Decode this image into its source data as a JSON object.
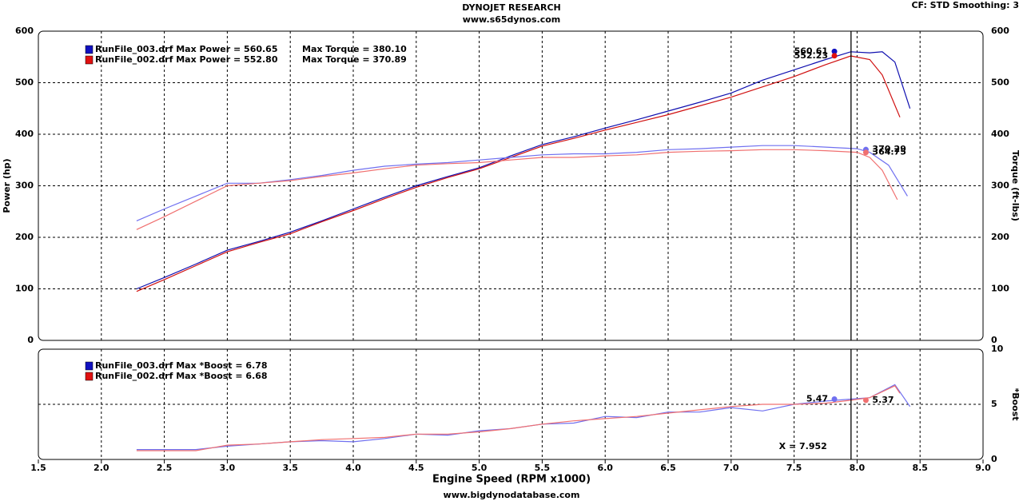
{
  "header": {
    "title": "DYNOJET RESEARCH",
    "subtitle": "www.s65dynos.com",
    "settings": "CF: STD  Smoothing: 3",
    "footer": "www.bigdynodatabase.com"
  },
  "chart_data": [
    {
      "type": "line",
      "ylabel": "Power (hp)",
      "y2label": "Torque (ft-lbs)",
      "xlim": [
        1.5,
        9.0
      ],
      "xticks": [
        1.5,
        2,
        2.5,
        3,
        3.5,
        4,
        4.5,
        5,
        5.5,
        6,
        6.5,
        7,
        7.5,
        8,
        8.5,
        9
      ],
      "ylim": [
        0,
        600
      ],
      "yticks": [
        0,
        100,
        200,
        300,
        400,
        500,
        600
      ],
      "y2lim": [
        0,
        600
      ],
      "y2ticks": [
        0,
        100,
        200,
        300,
        400,
        500,
        600
      ],
      "grid": true,
      "legend": [
        {
          "color": "#1010c0",
          "text": "RunFile_003.drf Max Power = 560.65",
          "text2": "Max Torque = 380.10"
        },
        {
          "color": "#e01010",
          "text": "RunFile_002.drf Max Power = 552.80",
          "text2": "Max Torque = 370.89"
        }
      ],
      "series": [
        {
          "color": "#1010b0",
          "axis": "y",
          "x": [
            2.28,
            2.5,
            2.75,
            3.0,
            3.25,
            3.5,
            3.75,
            4.0,
            4.25,
            4.5,
            4.75,
            5.0,
            5.25,
            5.5,
            5.75,
            6.0,
            6.25,
            6.5,
            6.75,
            7.0,
            7.25,
            7.5,
            7.75,
            7.95,
            8.1,
            8.2,
            8.3,
            8.42
          ],
          "values": [
            100,
            122,
            148,
            175,
            192,
            210,
            232,
            255,
            278,
            300,
            318,
            335,
            358,
            380,
            395,
            412,
            428,
            445,
            462,
            480,
            505,
            525,
            545,
            560,
            558,
            560,
            540,
            450
          ]
        },
        {
          "color": "#d01010",
          "axis": "y",
          "x": [
            2.28,
            2.5,
            2.75,
            3.0,
            3.25,
            3.5,
            3.75,
            4.0,
            4.25,
            4.5,
            4.75,
            5.0,
            5.25,
            5.5,
            5.75,
            6.0,
            6.25,
            6.5,
            6.75,
            7.0,
            7.25,
            7.5,
            7.75,
            7.95,
            8.1,
            8.2,
            8.34
          ],
          "values": [
            95,
            118,
            145,
            172,
            190,
            207,
            230,
            252,
            275,
            297,
            316,
            333,
            355,
            377,
            392,
            408,
            423,
            438,
            455,
            472,
            492,
            512,
            535,
            552,
            545,
            515,
            433
          ]
        },
        {
          "color": "#7070f0",
          "axis": "y2",
          "x": [
            2.28,
            2.5,
            2.75,
            3.0,
            3.25,
            3.5,
            3.75,
            4.0,
            4.25,
            4.5,
            4.75,
            5.0,
            5.25,
            5.5,
            5.75,
            6.0,
            6.25,
            6.5,
            6.75,
            7.0,
            7.25,
            7.5,
            7.75,
            8.0,
            8.1,
            8.25,
            8.4
          ],
          "values": [
            232,
            255,
            280,
            305,
            305,
            312,
            320,
            330,
            338,
            342,
            345,
            350,
            355,
            360,
            362,
            362,
            365,
            370,
            372,
            375,
            378,
            378,
            375,
            372,
            365,
            340,
            280
          ]
        },
        {
          "color": "#f07070",
          "axis": "y2",
          "x": [
            2.28,
            2.5,
            2.75,
            3.0,
            3.25,
            3.5,
            3.75,
            4.0,
            4.25,
            4.5,
            4.75,
            5.0,
            5.25,
            5.5,
            5.75,
            6.0,
            6.25,
            6.5,
            6.75,
            7.0,
            7.25,
            7.5,
            7.75,
            8.0,
            8.1,
            8.2,
            8.32
          ],
          "values": [
            215,
            240,
            270,
            300,
            305,
            310,
            318,
            325,
            333,
            340,
            343,
            345,
            350,
            355,
            355,
            358,
            360,
            365,
            367,
            368,
            370,
            370,
            368,
            365,
            355,
            330,
            273
          ]
        }
      ],
      "cursor": {
        "value": 7.952
      },
      "markers": [
        {
          "x": 7.82,
          "value": 560.61,
          "color": "#1010c0",
          "axis": "y"
        },
        {
          "x": 7.82,
          "value": 552.23,
          "color": "#e01010",
          "axis": "y"
        },
        {
          "x": 8.07,
          "value": 370.29,
          "color": "#7070f0",
          "axis": "y2"
        },
        {
          "x": 8.07,
          "value": 364.75,
          "color": "#f07070",
          "axis": "y2"
        }
      ]
    },
    {
      "type": "line",
      "xlabel": "Engine Speed (RPM x1000)",
      "y2label": "*Boost",
      "xlim": [
        1.5,
        9.0
      ],
      "xticks": [
        1.5,
        {
          "value": 2,
          "label": "2.0"
        },
        2.5,
        {
          "value": 3,
          "label": "3.0"
        },
        3.5,
        {
          "value": 4,
          "label": "4.0"
        },
        4.5,
        {
          "value": 5,
          "label": "5.0"
        },
        5.5,
        {
          "value": 6,
          "label": "6.0"
        },
        6.5,
        {
          "value": 7,
          "label": "7.0"
        },
        7.5,
        {
          "value": 8,
          "label": "8.0"
        },
        8.5,
        {
          "value": 9,
          "label": "9.0"
        }
      ],
      "y2lim": [
        0,
        10
      ],
      "y2ticks": [
        0,
        5,
        10
      ],
      "grid": true,
      "legend": [
        {
          "color": "#1010c0",
          "text": "RunFile_003.drf Max *Boost = 6.78"
        },
        {
          "color": "#e01010",
          "text": "RunFile_002.drf Max *Boost = 6.68"
        }
      ],
      "series": [
        {
          "color": "#7070f0",
          "axis": "y2",
          "x": [
            2.28,
            2.5,
            2.75,
            3.0,
            3.25,
            3.5,
            3.75,
            4.0,
            4.25,
            4.5,
            4.75,
            5.0,
            5.25,
            5.5,
            5.75,
            6.0,
            6.25,
            6.5,
            6.75,
            7.0,
            7.25,
            7.5,
            7.75,
            7.95,
            8.1,
            8.3,
            8.42
          ],
          "values": [
            0.9,
            0.9,
            0.9,
            1.2,
            1.4,
            1.6,
            1.7,
            1.6,
            1.9,
            2.3,
            2.2,
            2.6,
            2.8,
            3.2,
            3.3,
            3.9,
            3.8,
            4.3,
            4.3,
            4.7,
            4.4,
            5.0,
            5.3,
            5.47,
            5.6,
            6.78,
            4.8
          ]
        },
        {
          "color": "#f07070",
          "axis": "y2",
          "x": [
            2.28,
            2.5,
            2.75,
            3.0,
            3.25,
            3.5,
            3.75,
            4.0,
            4.25,
            4.5,
            4.75,
            5.0,
            5.25,
            5.5,
            5.75,
            6.0,
            6.25,
            6.5,
            6.75,
            7.0,
            7.25,
            7.5,
            7.75,
            7.95,
            8.1,
            8.3,
            8.34
          ],
          "values": [
            0.8,
            0.8,
            0.8,
            1.3,
            1.4,
            1.6,
            1.8,
            1.9,
            2.0,
            2.3,
            2.3,
            2.5,
            2.8,
            3.2,
            3.5,
            3.7,
            3.9,
            4.2,
            4.5,
            4.8,
            5.0,
            5.0,
            5.1,
            5.37,
            5.6,
            6.68,
            6.0
          ]
        }
      ],
      "cursor": {
        "value": 7.952,
        "label": "X = 7.952"
      },
      "markers": [
        {
          "x": 7.82,
          "value": 5.47,
          "color": "#7070f0",
          "axis": "y2"
        },
        {
          "x": 8.07,
          "value": 5.37,
          "color": "#f07070",
          "axis": "y2"
        }
      ]
    }
  ]
}
